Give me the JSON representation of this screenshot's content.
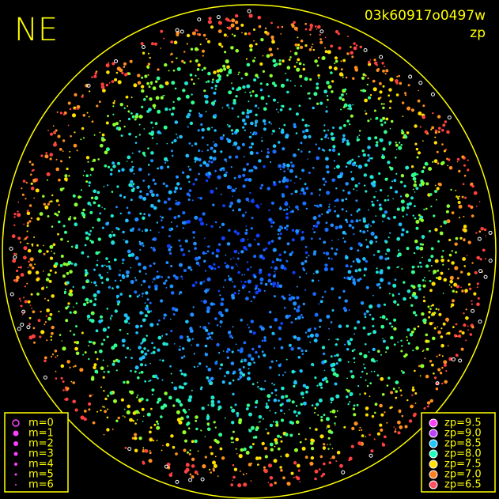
{
  "header": {
    "direction": "NE",
    "frame_id": "03k60917o0497w",
    "mode": "zp"
  },
  "magnitude_legend": [
    "m=0",
    "m=1",
    "m=2",
    "m=3",
    "m=4",
    "m=5",
    "m=6"
  ],
  "zp_legend": [
    {
      "label": "zp=9.5",
      "color": "#ff40ff"
    },
    {
      "label": "zp=9.0",
      "color": "#c040ff"
    },
    {
      "label": "zp=8.5",
      "color": "#20c8ff"
    },
    {
      "label": "zp=8.0",
      "color": "#20ffc0"
    },
    {
      "label": "zp=7.5",
      "color": "#ffe000"
    },
    {
      "label": "zp=7.0",
      "color": "#ff8020"
    },
    {
      "label": "zp=6.5",
      "color": "#ff5060"
    }
  ]
}
